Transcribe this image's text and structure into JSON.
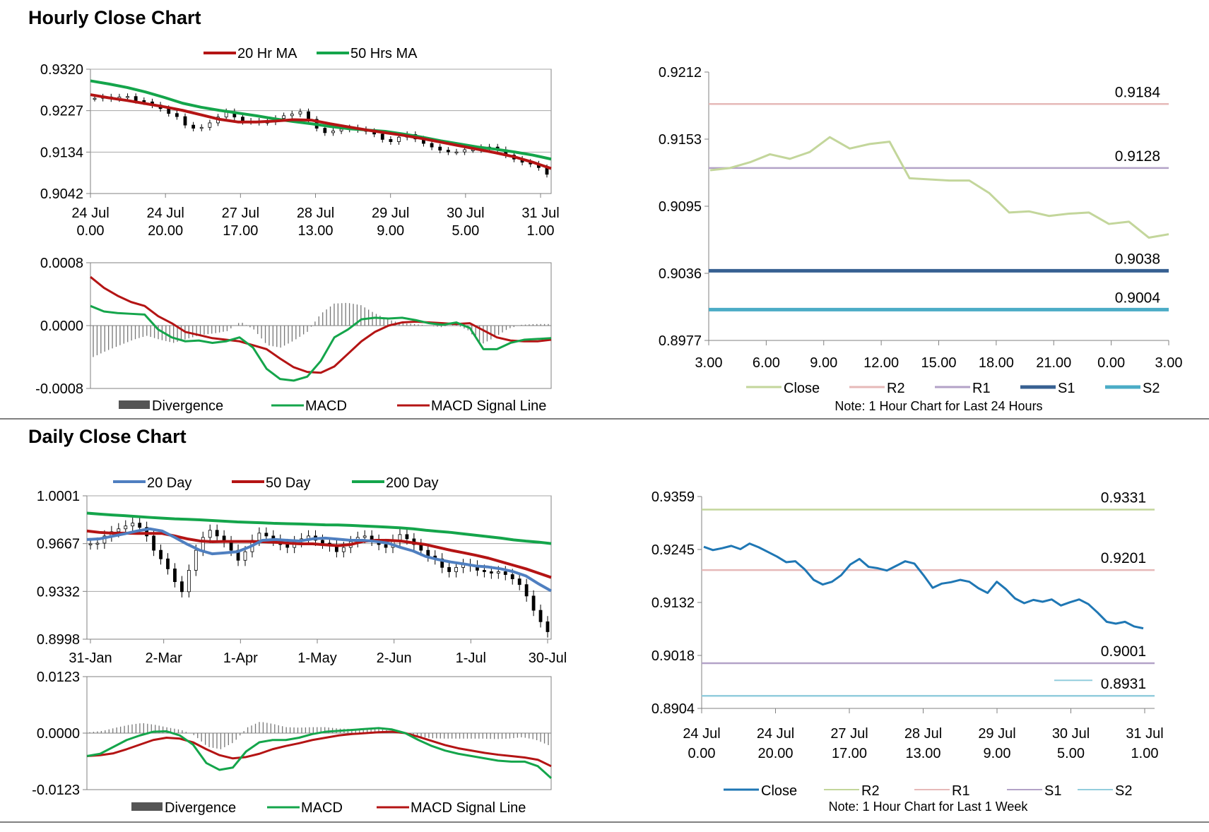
{
  "sections": {
    "hourly_title": "Hourly Close Chart",
    "daily_title": "Daily Close Chart"
  },
  "colors": {
    "ma_red": "#b41414",
    "ma_green": "#14a54b",
    "ma_blue": "#4f7fc0",
    "close_lightgreen": "#c3d69b",
    "r2_pink": "#e6b9b8",
    "r1_lavender": "#b3a2c7",
    "s1_blue": "#376092",
    "s2_teal": "#4bacc6",
    "close_blue": "#1f77b4",
    "divergence_gray": "#555555",
    "axis": "#808080",
    "grid": "#a6a6a6"
  },
  "chart_data": [
    {
      "id": "hourly_price",
      "type": "candlestick",
      "legend": [
        "20 Hr MA",
        "50 Hrs MA"
      ],
      "yticks": [
        "0.9320",
        "0.9227",
        "0.9134",
        "0.9042"
      ],
      "ylim": [
        0.9042,
        0.932
      ],
      "xticks": [
        [
          "24 Jul",
          "0.00"
        ],
        [
          "24 Jul",
          "20.00"
        ],
        [
          "27 Jul",
          "17.00"
        ],
        [
          "28 Jul",
          "13.00"
        ],
        [
          "29 Jul",
          "9.00"
        ],
        [
          "30 Jul",
          "5.00"
        ],
        [
          "31 Jul",
          "1.00"
        ]
      ],
      "grid": true,
      "series": [
        {
          "name": "20 Hr MA",
          "values": [
            0.9263,
            0.9256,
            0.925,
            0.9243,
            0.9236,
            0.9228,
            0.9218,
            0.9208,
            0.9202,
            0.9202,
            0.9204,
            0.9207,
            0.9206,
            0.9198,
            0.9191,
            0.9184,
            0.9178,
            0.9172,
            0.9165,
            0.9157,
            0.9149,
            0.9141,
            0.9133,
            0.9124,
            0.9112,
            0.9098
          ]
        },
        {
          "name": "50 Hrs MA",
          "values": [
            0.9294,
            0.9287,
            0.9279,
            0.9269,
            0.9257,
            0.9244,
            0.9235,
            0.9228,
            0.9222,
            0.9216,
            0.9209,
            0.9203,
            0.9198,
            0.9192,
            0.9187,
            0.9184,
            0.9181,
            0.9175,
            0.9168,
            0.916,
            0.9153,
            0.9146,
            0.9141,
            0.9135,
            0.9128,
            0.9119
          ]
        }
      ],
      "candles_close": [
        0.9255,
        0.9258,
        0.9254,
        0.9258,
        0.9259,
        0.925,
        0.9247,
        0.924,
        0.9232,
        0.9221,
        0.9214,
        0.9195,
        0.9188,
        0.919,
        0.92,
        0.9213,
        0.9225,
        0.9213,
        0.9203,
        0.9204,
        0.9201,
        0.9202,
        0.921,
        0.9216,
        0.922,
        0.9225,
        0.9208,
        0.9188,
        0.9178,
        0.9182,
        0.9186,
        0.9189,
        0.9185,
        0.9181,
        0.9175,
        0.9163,
        0.9158,
        0.9168,
        0.9174,
        0.9164,
        0.9154,
        0.9146,
        0.9139,
        0.9135,
        0.9135,
        0.914,
        0.914,
        0.9145,
        0.9146,
        0.914,
        0.9128,
        0.9119,
        0.9112,
        0.9108,
        0.91,
        0.9085
      ]
    },
    {
      "id": "hourly_macd",
      "type": "line",
      "legend": [
        "Divergence",
        "MACD",
        "MACD Signal Line"
      ],
      "yticks": [
        "0.0008",
        "0.0000",
        "-0.0008"
      ],
      "ylim": [
        -0.0008,
        0.0008
      ],
      "series": [
        {
          "name": "MACD",
          "values": [
            0.00025,
            0.00018,
            0.00016,
            0.00015,
            0.00014,
            -5e-05,
            -0.00015,
            -0.0002,
            -0.00019,
            -0.00022,
            -0.0002,
            -0.00015,
            -0.00028,
            -0.00055,
            -0.00068,
            -0.0007,
            -0.00065,
            -0.00045,
            -0.00015,
            -5e-05,
            8e-05,
            0.0001,
            9e-05,
            0.0001,
            7e-05,
            3e-05,
            1e-05,
            4e-05,
            -3e-05,
            -0.0003,
            -0.0003,
            -0.00022,
            -0.00018,
            -0.00017,
            -0.00016
          ]
        },
        {
          "name": "MACD Signal Line",
          "values": [
            0.00062,
            0.00048,
            0.00038,
            0.0003,
            0.00025,
            0.00012,
            3e-05,
            -8e-05,
            -0.00012,
            -0.00016,
            -0.00018,
            -0.0002,
            -0.00025,
            -0.0003,
            -0.00042,
            -0.00053,
            -0.00059,
            -0.0006,
            -0.00052,
            -0.00036,
            -0.0002,
            -8e-05,
            0.0,
            4e-05,
            5e-05,
            4e-05,
            3e-05,
            2e-05,
            3e-05,
            -6e-05,
            -0.00015,
            -0.00019,
            -0.0002,
            -0.0002,
            -0.00018
          ]
        },
        {
          "name": "Divergence",
          "values": [
            -0.0004,
            -0.00032,
            -0.00025,
            -0.00018,
            -0.00013,
            -0.00018,
            -0.00022,
            -0.00017,
            -0.00012,
            -0.0001,
            -7e-05,
            5e-05,
            -5e-05,
            -0.00025,
            -0.00028,
            -0.00019,
            -8e-05,
            0.00015,
            0.00028,
            0.00029,
            0.00026,
            0.00016,
            8e-05,
            3e-05,
            2e-05,
            0.0,
            -2e-05,
            2e-05,
            -6e-05,
            -0.00024,
            -0.00015,
            -4e-05,
            1e-05,
            2e-05,
            2e-05
          ]
        }
      ]
    },
    {
      "id": "hourly_levels",
      "type": "line",
      "legend": [
        "Close",
        "R2",
        "R1",
        "S1",
        "S2"
      ],
      "yticks": [
        "0.9212",
        "0.9153",
        "0.9095",
        "0.9036",
        "0.8977"
      ],
      "ylim": [
        0.8977,
        0.9212
      ],
      "xticks": [
        "3.00",
        "6.00",
        "9.00",
        "12.00",
        "15.00",
        "18.00",
        "21.00",
        "0.00",
        "3.00"
      ],
      "note": "Note: 1 Hour Chart for Last 24 Hours",
      "levels": [
        {
          "name": "R2",
          "value": 0.9184,
          "label": "0.9184"
        },
        {
          "name": "R1",
          "value": 0.9128,
          "label": "0.9128"
        },
        {
          "name": "S1",
          "value": 0.9038,
          "label": "0.9038"
        },
        {
          "name": "S2",
          "value": 0.9004,
          "label": "0.9004"
        }
      ],
      "series": [
        {
          "name": "Close",
          "values": [
            0.9126,
            0.9128,
            0.9133,
            0.914,
            0.9136,
            0.9142,
            0.9155,
            0.9145,
            0.9149,
            0.9151,
            0.9119,
            0.9118,
            0.9117,
            0.9117,
            0.9106,
            0.9089,
            0.909,
            0.9086,
            0.9088,
            0.9089,
            0.9079,
            0.9081,
            0.9067,
            0.907
          ]
        }
      ]
    },
    {
      "id": "daily_price",
      "type": "candlestick",
      "legend": [
        "20 Day",
        "50 Day",
        "200 Day"
      ],
      "yticks": [
        "1.0001",
        "0.9667",
        "0.9332",
        "0.8998"
      ],
      "ylim": [
        0.8998,
        1.0001
      ],
      "xticks": [
        "31-Jan",
        "2-Mar",
        "1-Apr",
        "1-May",
        "2-Jun",
        "1-Jul",
        "30-Jul"
      ],
      "grid": true,
      "series": [
        {
          "name": "20 Day",
          "values": [
            0.9695,
            0.97,
            0.9718,
            0.9735,
            0.9755,
            0.977,
            0.9755,
            0.971,
            0.9662,
            0.962,
            0.9595,
            0.9602,
            0.961,
            0.9645,
            0.969,
            0.9695,
            0.969,
            0.9685,
            0.97,
            0.9705,
            0.9698,
            0.969,
            0.969,
            0.9682,
            0.967,
            0.964,
            0.9615,
            0.9577,
            0.9555,
            0.9538,
            0.9525,
            0.951,
            0.9503,
            0.949,
            0.947,
            0.944,
            0.9385,
            0.9336
          ]
        },
        {
          "name": "50 Day",
          "values": [
            0.9755,
            0.9745,
            0.974,
            0.974,
            0.9738,
            0.9738,
            0.9738,
            0.972,
            0.97,
            0.9685,
            0.968,
            0.9682,
            0.9682,
            0.9682,
            0.968,
            0.9676,
            0.967,
            0.9665,
            0.9665,
            0.9658,
            0.9652,
            0.966,
            0.9682,
            0.969,
            0.969,
            0.9685,
            0.9672,
            0.966,
            0.964,
            0.962,
            0.9603,
            0.9585,
            0.9565,
            0.954,
            0.9515,
            0.949,
            0.946,
            0.943
          ]
        },
        {
          "name": "200 Day",
          "values": [
            0.988,
            0.9873,
            0.9867,
            0.9862,
            0.9856,
            0.985,
            0.9845,
            0.984,
            0.9837,
            0.9833,
            0.9828,
            0.9823,
            0.9818,
            0.9815,
            0.9812,
            0.9808,
            0.9806,
            0.9804,
            0.9801,
            0.9798,
            0.9797,
            0.9794,
            0.979,
            0.9786,
            0.9782,
            0.9777,
            0.977,
            0.976,
            0.9752,
            0.9745,
            0.9735,
            0.9725,
            0.9715,
            0.9705,
            0.9693,
            0.9684,
            0.9677,
            0.9667
          ]
        }
      ],
      "candles_close": [
        0.9665,
        0.967,
        0.972,
        0.975,
        0.977,
        0.979,
        0.981,
        0.978,
        0.972,
        0.962,
        0.956,
        0.949,
        0.94,
        0.933,
        0.948,
        0.962,
        0.971,
        0.976,
        0.972,
        0.968,
        0.962,
        0.955,
        0.961,
        0.969,
        0.974,
        0.972,
        0.969,
        0.966,
        0.964,
        0.968,
        0.97,
        0.972,
        0.969,
        0.967,
        0.965,
        0.961,
        0.964,
        0.968,
        0.971,
        0.972,
        0.969,
        0.966,
        0.964,
        0.969,
        0.973,
        0.97,
        0.966,
        0.962,
        0.958,
        0.956,
        0.95,
        0.947,
        0.95,
        0.952,
        0.951,
        0.948,
        0.947,
        0.946,
        0.947,
        0.945,
        0.942,
        0.938,
        0.93,
        0.92,
        0.912,
        0.905
      ]
    },
    {
      "id": "daily_macd",
      "type": "line",
      "legend": [
        "Divergence",
        "MACD",
        "MACD Signal Line"
      ],
      "yticks": [
        "0.0123",
        "0.0000",
        "-0.0123"
      ],
      "ylim": [
        -0.0123,
        0.0123
      ],
      "series": [
        {
          "name": "MACD",
          "values": [
            -0.005,
            -0.0045,
            -0.003,
            -0.0015,
            -0.0005,
            0.0003,
            0.0004,
            -0.0005,
            -0.0025,
            -0.0065,
            -0.008,
            -0.0075,
            -0.004,
            -0.002,
            -0.0015,
            -0.0015,
            -0.001,
            -0.0002,
            0.0003,
            0.0005,
            0.0007,
            0.0009,
            0.0011,
            0.0008,
            0.0,
            -0.0015,
            -0.0028,
            -0.0038,
            -0.0045,
            -0.005,
            -0.0055,
            -0.006,
            -0.0062,
            -0.0062,
            -0.0072,
            -0.0098
          ]
        },
        {
          "name": "MACD Signal Line",
          "values": [
            -0.005,
            -0.0048,
            -0.0044,
            -0.0035,
            -0.0025,
            -0.0015,
            -0.001,
            -0.0012,
            -0.002,
            -0.0035,
            -0.0048,
            -0.0055,
            -0.0052,
            -0.0045,
            -0.0035,
            -0.0028,
            -0.0022,
            -0.0015,
            -0.001,
            -0.0005,
            -0.0002,
            0.0,
            0.0002,
            0.0003,
            0.0,
            -0.0008,
            -0.0017,
            -0.0026,
            -0.0033,
            -0.0038,
            -0.0043,
            -0.0047,
            -0.005,
            -0.0053,
            -0.0058,
            -0.0072
          ]
        },
        {
          "name": "Divergence",
          "values": [
            0.0002,
            0.0005,
            0.0012,
            0.0018,
            0.0022,
            0.0018,
            0.0012,
            0.0007,
            -0.0005,
            -0.003,
            -0.0035,
            -0.002,
            0.0012,
            0.0025,
            0.002,
            0.0013,
            0.0012,
            0.0013,
            0.0013,
            0.001,
            0.0009,
            0.0009,
            0.0009,
            0.0005,
            0.0,
            -0.0007,
            -0.0011,
            -0.0012,
            -0.0012,
            -0.0012,
            -0.0012,
            -0.0013,
            -0.0012,
            -0.0009,
            -0.0014,
            -0.0026
          ]
        }
      ]
    },
    {
      "id": "weekly_levels",
      "type": "line",
      "legend": [
        "Close",
        "R2",
        "R1",
        "S1",
        "S2"
      ],
      "yticks": [
        "0.9359",
        "0.9245",
        "0.9132",
        "0.9018",
        "0.8904"
      ],
      "ylim": [
        0.8904,
        0.9359
      ],
      "xticks": [
        [
          "24 Jul",
          "0.00"
        ],
        [
          "24 Jul",
          "20.00"
        ],
        [
          "27 Jul",
          "17.00"
        ],
        [
          "28 Jul",
          "13.00"
        ],
        [
          "29 Jul",
          "9.00"
        ],
        [
          "30 Jul",
          "5.00"
        ],
        [
          "31 Jul",
          "1.00"
        ]
      ],
      "note": "Note: 1 Hour Chart for Last 1 Week",
      "levels": [
        {
          "name": "R2",
          "value": 0.9331,
          "label": "0.9331"
        },
        {
          "name": "R1",
          "value": 0.9201,
          "label": "0.9201"
        },
        {
          "name": "S1",
          "value": 0.9001,
          "label": "0.9001"
        },
        {
          "name": "S2",
          "value": 0.8931,
          "label": "0.8931"
        }
      ],
      "series": [
        {
          "name": "Close",
          "values": [
            0.9251,
            0.9244,
            0.9248,
            0.9253,
            0.9246,
            0.9258,
            0.925,
            0.924,
            0.923,
            0.9218,
            0.922,
            0.9203,
            0.918,
            0.917,
            0.9176,
            0.919,
            0.9213,
            0.9225,
            0.9208,
            0.9205,
            0.92,
            0.921,
            0.922,
            0.9215,
            0.919,
            0.9163,
            0.9172,
            0.9175,
            0.918,
            0.9176,
            0.9162,
            0.9152,
            0.9176,
            0.916,
            0.914,
            0.913,
            0.9137,
            0.9133,
            0.9138,
            0.9125,
            0.9132,
            0.9138,
            0.9128,
            0.911,
            0.909,
            0.9086,
            0.909,
            0.908,
            0.9076
          ]
        }
      ]
    }
  ]
}
